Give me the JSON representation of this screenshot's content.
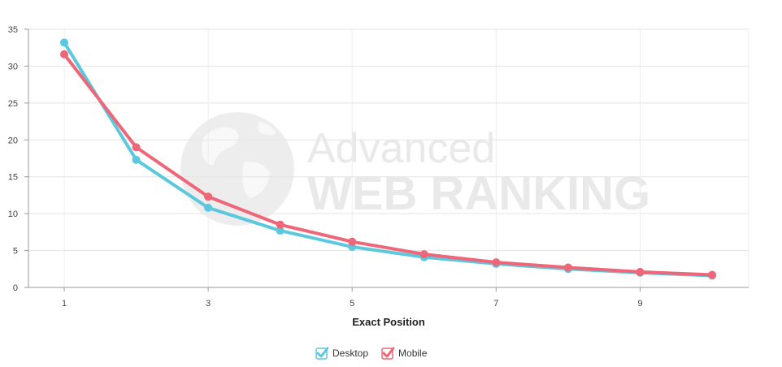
{
  "watermark": {
    "line1": "Advanced",
    "line2": "WEB RANKING"
  },
  "chart_data": {
    "type": "line",
    "title": "",
    "xlabel": "Exact Position",
    "ylabel": "",
    "x": [
      1,
      2,
      3,
      4,
      5,
      6,
      7,
      8,
      9,
      10
    ],
    "xticks": [
      1,
      3,
      5,
      7,
      9
    ],
    "yticks": [
      0,
      5,
      10,
      15,
      20,
      25,
      30,
      35
    ],
    "xlim": [
      0.5,
      10.5
    ],
    "ylim": [
      0,
      35
    ],
    "grid": true,
    "legend_position": "bottom-center",
    "series": [
      {
        "name": "Desktop",
        "color": "#5bc8de",
        "values": [
          33.2,
          17.3,
          10.8,
          7.7,
          5.5,
          4.1,
          3.2,
          2.5,
          2.0,
          1.6
        ]
      },
      {
        "name": "Mobile",
        "color": "#ee6677",
        "values": [
          31.6,
          19.0,
          12.3,
          8.5,
          6.2,
          4.5,
          3.4,
          2.7,
          2.1,
          1.7
        ]
      }
    ]
  }
}
